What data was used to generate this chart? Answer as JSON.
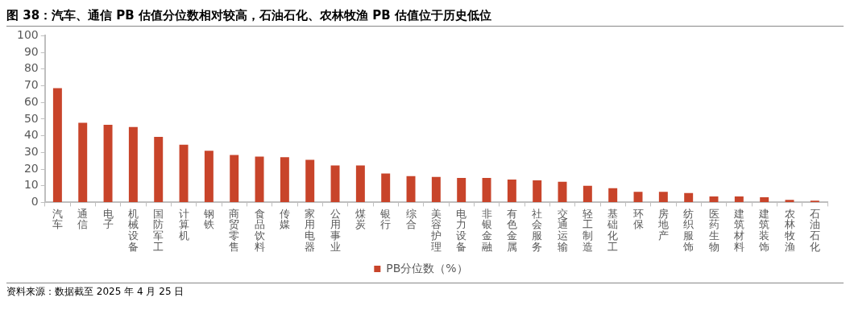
{
  "chart_data": {
    "type": "bar",
    "title": "图 38：汽车、通信 PB 估值分位数相对较高，石油石化、农林牧渔 PB 估值位于历史低位",
    "categories": [
      "汽车",
      "通信",
      "电子",
      "机械设备",
      "国防军工",
      "计算机",
      "钢铁",
      "商贸零售",
      "食品饮料",
      "传媒",
      "家用电器",
      "公用事业",
      "煤炭",
      "银行",
      "综合",
      "美容护理",
      "电力设备",
      "非银金融",
      "有色金属",
      "社会服务",
      "交通运输",
      "轻工制造",
      "基础化工",
      "环保",
      "房地产",
      "纺织服饰",
      "医药生物",
      "建筑材料",
      "建筑装饰",
      "农林牧渔",
      "石油石化"
    ],
    "series": [
      {
        "name": "PB分位数（%）",
        "color": "#c8442a",
        "values": [
          68.6,
          47.8,
          46.6,
          45.3,
          39.3,
          34.6,
          31.0,
          28.5,
          27.5,
          27.1,
          25.6,
          22.2,
          22.2,
          17.3,
          15.8,
          15.3,
          14.7,
          14.7,
          13.7,
          13.2,
          12.4,
          10.0,
          8.5,
          6.4,
          6.4,
          5.6,
          3.6,
          3.6,
          3.1,
          1.5,
          1.0
        ]
      }
    ],
    "ylim": [
      0,
      100
    ],
    "yticks": [
      0,
      10,
      20,
      30,
      40,
      50,
      60,
      70,
      80,
      90,
      100
    ],
    "grid": false,
    "legend": "bottom",
    "annotations": [
      "资料来源：数据截至 2025 年 4 月 25 日"
    ]
  }
}
